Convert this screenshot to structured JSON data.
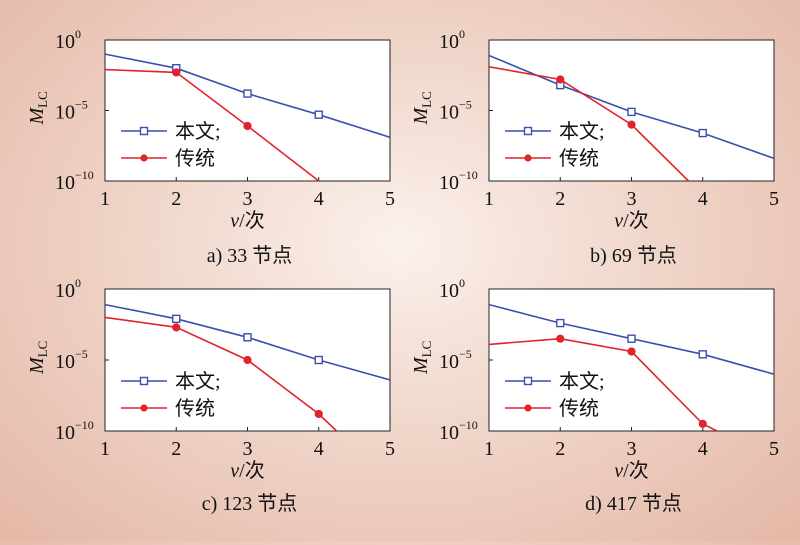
{
  "chart_data": [
    {
      "type": "line",
      "panel_label": "a) 33 节点",
      "xlabel": "v/次",
      "ylabel": "M_LC",
      "yscale": "log",
      "xlim": [
        1,
        5
      ],
      "ylim_exp": [
        -10,
        0
      ],
      "x_ticks": [
        "1",
        "2",
        "3",
        "4",
        "5"
      ],
      "y_ticks": [
        {
          "base": "10",
          "exp": "0"
        },
        {
          "base": "10",
          "exp": "−5"
        },
        {
          "base": "10",
          "exp": "−10"
        }
      ],
      "legend_position": "lower-left",
      "series": [
        {
          "name": "本文;",
          "color": "#3b4fb0",
          "marker": "square",
          "x": [
            1,
            2,
            3,
            4,
            5
          ],
          "log10_y": [
            -1.0,
            -2.0,
            -3.8,
            -5.3,
            -6.9
          ],
          "marked_x": [
            2,
            3,
            4
          ]
        },
        {
          "name": "传统",
          "color": "#e0242b",
          "marker": "circle",
          "x": [
            1,
            2,
            3,
            4.0
          ],
          "log10_y": [
            -2.1,
            -2.3,
            -6.1,
            -10.0
          ],
          "marked_x": [
            2,
            3
          ]
        }
      ]
    },
    {
      "type": "line",
      "panel_label": "b) 69 节点",
      "xlabel": "v/次",
      "ylabel": "M_LC",
      "yscale": "log",
      "xlim": [
        1,
        5
      ],
      "ylim_exp": [
        -10,
        0
      ],
      "x_ticks": [
        "1",
        "2",
        "3",
        "4",
        "5"
      ],
      "y_ticks": [
        {
          "base": "10",
          "exp": "0"
        },
        {
          "base": "10",
          "exp": "−5"
        },
        {
          "base": "10",
          "exp": "−10"
        }
      ],
      "legend_position": "lower-left",
      "series": [
        {
          "name": "本文;",
          "color": "#3b4fb0",
          "marker": "square",
          "x": [
            1,
            2,
            3,
            4,
            5
          ],
          "log10_y": [
            -1.1,
            -3.2,
            -5.1,
            -6.6,
            -8.4
          ],
          "marked_x": [
            2,
            3,
            4
          ]
        },
        {
          "name": "传统",
          "color": "#e0242b",
          "marker": "circle",
          "x": [
            1,
            2,
            3,
            3.8
          ],
          "log10_y": [
            -1.9,
            -2.8,
            -6.0,
            -10.0
          ],
          "marked_x": [
            2,
            3
          ]
        }
      ]
    },
    {
      "type": "line",
      "panel_label": "c) 123 节点",
      "xlabel": "v/次",
      "ylabel": "M_LC",
      "yscale": "log",
      "xlim": [
        1,
        5
      ],
      "ylim_exp": [
        -10,
        0
      ],
      "x_ticks": [
        "1",
        "2",
        "3",
        "4",
        "5"
      ],
      "y_ticks": [
        {
          "base": "10",
          "exp": "0"
        },
        {
          "base": "10",
          "exp": "−5"
        },
        {
          "base": "10",
          "exp": "−10"
        }
      ],
      "legend_position": "lower-left",
      "series": [
        {
          "name": "本文;",
          "color": "#3b4fb0",
          "marker": "square",
          "x": [
            1,
            2,
            3,
            4,
            5
          ],
          "log10_y": [
            -1.1,
            -2.1,
            -3.4,
            -5.0,
            -6.4
          ],
          "marked_x": [
            2,
            3,
            4
          ]
        },
        {
          "name": "传统",
          "color": "#e0242b",
          "marker": "circle",
          "x": [
            1,
            2,
            3,
            4,
            4.25
          ],
          "log10_y": [
            -2.0,
            -2.7,
            -5.0,
            -8.8,
            -10.0
          ],
          "marked_x": [
            2,
            3,
            4
          ]
        }
      ]
    },
    {
      "type": "line",
      "panel_label": "d) 417 节点",
      "xlabel": "v/次",
      "ylabel": "M_LC",
      "yscale": "log",
      "xlim": [
        1,
        5
      ],
      "ylim_exp": [
        -10,
        0
      ],
      "x_ticks": [
        "1",
        "2",
        "3",
        "4",
        "5"
      ],
      "y_ticks": [
        {
          "base": "10",
          "exp": "0"
        },
        {
          "base": "10",
          "exp": "−5"
        },
        {
          "base": "10",
          "exp": "−10"
        }
      ],
      "legend_position": "lower-left",
      "series": [
        {
          "name": "本文;",
          "color": "#3b4fb0",
          "marker": "square",
          "x": [
            1,
            2,
            3,
            4,
            5
          ],
          "log10_y": [
            -1.1,
            -2.4,
            -3.5,
            -4.6,
            -6.0
          ],
          "marked_x": [
            2,
            3,
            4
          ]
        },
        {
          "name": "传统",
          "color": "#e0242b",
          "marker": "circle",
          "x": [
            1,
            2,
            3,
            4,
            4.2
          ],
          "log10_y": [
            -3.9,
            -3.5,
            -4.4,
            -9.5,
            -10.0
          ],
          "marked_x": [
            2,
            3,
            4
          ]
        }
      ]
    }
  ]
}
